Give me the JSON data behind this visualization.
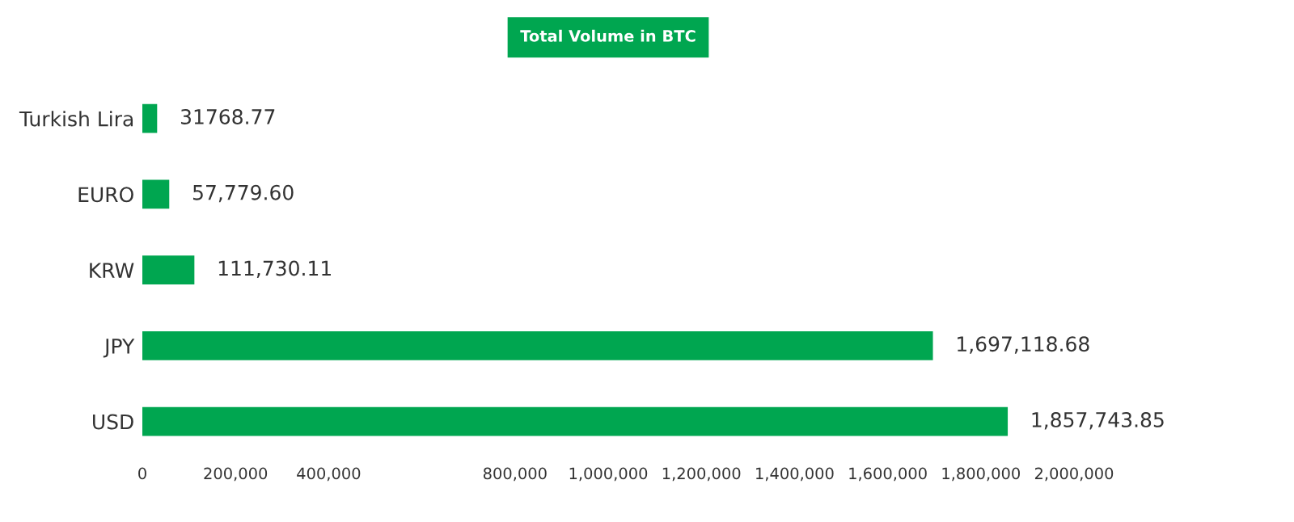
{
  "chart_data": {
    "type": "bar",
    "orientation": "horizontal",
    "title": "Total Volume in BTC",
    "categories": [
      "Turkish Lira",
      "EURO",
      "KRW",
      "JPY",
      "USD"
    ],
    "values": [
      31768.77,
      57779.6,
      111730.11,
      1697118.68,
      1857743.85
    ],
    "value_labels": [
      "31768.77",
      "57,779.60",
      "111,730.11",
      "1,697,118.68",
      "1,857,743.85"
    ],
    "color": "#00a650",
    "xlim": [
      0,
      2000000
    ],
    "xticks": [
      {
        "value": 0,
        "label": "0"
      },
      {
        "value": 200000,
        "label": "200,000"
      },
      {
        "value": 400000,
        "label": "400,000"
      },
      {
        "value": 800000,
        "label": "800,000"
      },
      {
        "value": 1000000,
        "label": "1,000,000"
      },
      {
        "value": 1200000,
        "label": "1,200,000"
      },
      {
        "value": 1400000,
        "label": "1,400,000"
      },
      {
        "value": 1600000,
        "label": "1,600,000"
      },
      {
        "value": 1800000,
        "label": "1,800,000"
      },
      {
        "value": 2000000,
        "label": "2,000,000"
      }
    ],
    "grid": false
  }
}
